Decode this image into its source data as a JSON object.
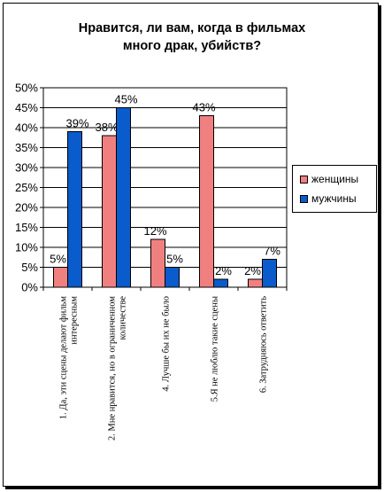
{
  "chart_data": {
    "type": "bar",
    "title_lines": [
      "Нравится, ли вам, когда в фильмах",
      "много драк, убийств?"
    ],
    "categories": [
      [
        "1. Да, эти сцены делают фильм",
        "интересным"
      ],
      [
        "2. Мне нравится, но в ограниченном",
        "количестве"
      ],
      [
        "4. Лучше бы их не было"
      ],
      [
        "5.Я не люблю такие сцены"
      ],
      [
        "6. Затрудняюсь ответить"
      ]
    ],
    "series": [
      {
        "name": "женщины",
        "color": "#F08080",
        "values": [
          5,
          38,
          12,
          43,
          2
        ]
      },
      {
        "name": "мужчины",
        "color": "#0A5BCB",
        "values": [
          39,
          45,
          5,
          2,
          7
        ]
      }
    ],
    "ylim": [
      0,
      50
    ],
    "yticks": [
      "0%",
      "5%",
      "10%",
      "15%",
      "20%",
      "25%",
      "30%",
      "35%",
      "40%",
      "45%",
      "50%"
    ],
    "value_suffix": "%",
    "grid": true,
    "legend": "right"
  }
}
